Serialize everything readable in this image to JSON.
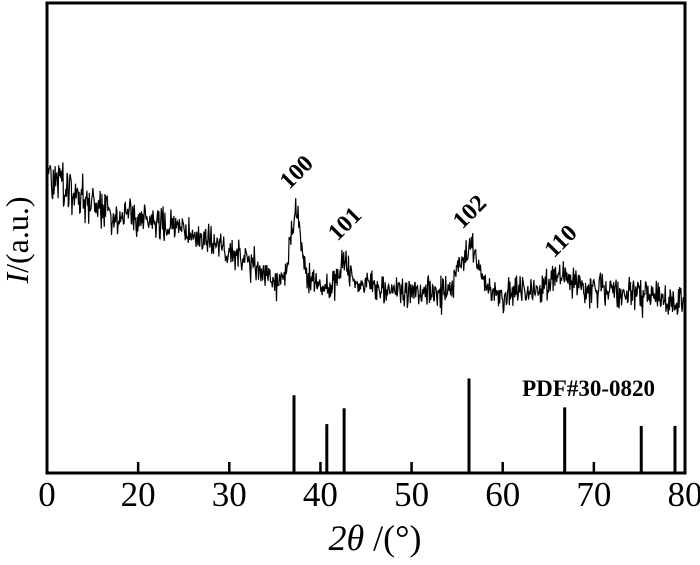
{
  "figure": {
    "background_color": "#ffffff",
    "ink_color": "#000000"
  },
  "axes": {
    "x_title_italic": "2θ",
    "x_title_rest": " /(°)",
    "y_title_italic": "I",
    "y_title_rest": "/(a.u.)",
    "x_tick_labels": [
      "0",
      "20",
      "30",
      "40",
      "50",
      "60",
      "70",
      "80"
    ]
  },
  "annotations": {
    "reference_label": "PDF#30-0820"
  },
  "chart_data": {
    "type": "line",
    "title": "",
    "xlabel": "2θ /(°)",
    "ylabel": "I/(a.u.)",
    "x_axis_tick_values": [
      0,
      20,
      30,
      40,
      50,
      60,
      70,
      80
    ],
    "x_axis_note": "tick labels printed at equal spacing: 0-20 interval equals each 10-degree interval",
    "y_axis_note": "intensity in arbitrary units, relative scale 0-110",
    "legend": "none",
    "grid": false,
    "baseline_points": [
      [
        0,
        98
      ],
      [
        7,
        93
      ],
      [
        14,
        87
      ],
      [
        20,
        84
      ],
      [
        24,
        82.5
      ],
      [
        27,
        78
      ],
      [
        30,
        74
      ],
      [
        33,
        68.5
      ],
      [
        35,
        64
      ],
      [
        37.3,
        62.5
      ],
      [
        39.5,
        64
      ],
      [
        41,
        62
      ],
      [
        44,
        62.5
      ],
      [
        48,
        60.5
      ],
      [
        54,
        60.3
      ],
      [
        58,
        60.3
      ],
      [
        62,
        60
      ],
      [
        66,
        61
      ],
      [
        70,
        61
      ],
      [
        73,
        60.3
      ],
      [
        75,
        59.5
      ],
      [
        78,
        58
      ],
      [
        80,
        56
      ]
    ],
    "peaks": [
      {
        "hkl": "100",
        "two_theta": 37.3,
        "amplitude": 26,
        "sigma": 0.55
      },
      {
        "hkl": "101",
        "two_theta": 42.6,
        "amplitude": 9,
        "sigma": 0.5
      },
      {
        "hkl": "102",
        "two_theta": 56.3,
        "amplitude": 15,
        "sigma": 0.9
      },
      {
        "hkl": "110",
        "two_theta": 66.3,
        "amplitude": 4.5,
        "sigma": 1.6
      }
    ],
    "noise": {
      "std_at_0deg": 4.2,
      "std_at_30deg_plus": 2.7,
      "description": "dense vertical jitter, larger at low angle"
    },
    "reference_pattern": {
      "label": "PDF#30-0820",
      "sticks": [
        {
          "two_theta": 37.1,
          "rel_intensity": 82
        },
        {
          "two_theta": 40.7,
          "rel_intensity": 51
        },
        {
          "two_theta": 42.6,
          "rel_intensity": 68
        },
        {
          "two_theta": 56.3,
          "rel_intensity": 100
        },
        {
          "two_theta": 66.8,
          "rel_intensity": 69
        },
        {
          "two_theta": 75.2,
          "rel_intensity": 49
        },
        {
          "two_theta": 78.9,
          "rel_intensity": 49
        }
      ]
    }
  }
}
